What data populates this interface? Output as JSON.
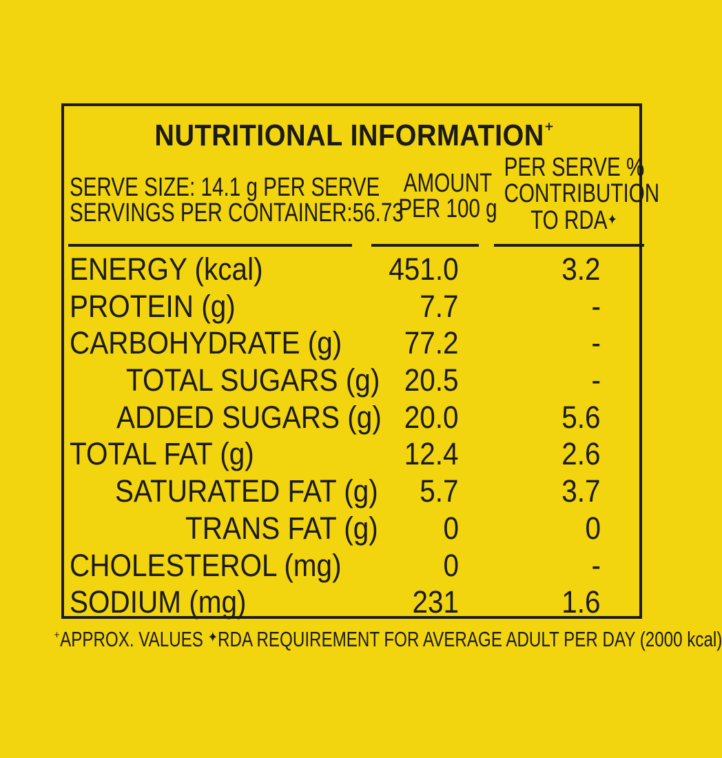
{
  "title": "NUTRITIONAL INFORMATION",
  "title_mark": "⁺",
  "header": {
    "serve_size": "SERVE SIZE: 14.1 g PER SERVE",
    "servings": "SERVINGS PER CONTAINER:56.73",
    "amount_line1": "AMOUNT",
    "amount_line2": "PER 100 g",
    "rda_line1": "PER SERVE %",
    "rda_line2": "CONTRIBUTION",
    "rda_line3": "TO RDA",
    "rda_mark": "✦"
  },
  "rows": [
    {
      "label": "ENERGY (kcal)",
      "amount": "451.0",
      "rda": "3.2",
      "indent": 0
    },
    {
      "label": "PROTEIN (g)",
      "amount": "7.7",
      "rda": "-",
      "indent": 0
    },
    {
      "label": "CARBOHYDRATE (g)",
      "amount": "77.2",
      "rda": "-",
      "indent": 0
    },
    {
      "label": "TOTAL SUGARS (g)",
      "amount": "20.5",
      "rda": "-",
      "indent": 1
    },
    {
      "label": "ADDED SUGARS (g)",
      "amount": "20.0",
      "rda": "5.6",
      "indent": 2
    },
    {
      "label": "TOTAL FAT (g)",
      "amount": "12.4",
      "rda": "2.6",
      "indent": 0
    },
    {
      "label": "SATURATED FAT (g)",
      "amount": "5.7",
      "rda": "3.7",
      "indent": 3
    },
    {
      "label": "TRANS FAT (g)",
      "amount": "0",
      "rda": "0",
      "indent": 4
    },
    {
      "label": "CHOLESTEROL (mg)",
      "amount": "0",
      "rda": "-",
      "indent": 0
    },
    {
      "label": "SODIUM (mg)",
      "amount": "231",
      "rda": "1.6",
      "indent": 0
    }
  ],
  "footnote": {
    "mark1": "⁺",
    "text1": "APPROX. VALUES ",
    "mark2": "✦",
    "text2": "RDA REQUIREMENT FOR AVERAGE ADULT PER DAY (2000 kcal)"
  }
}
